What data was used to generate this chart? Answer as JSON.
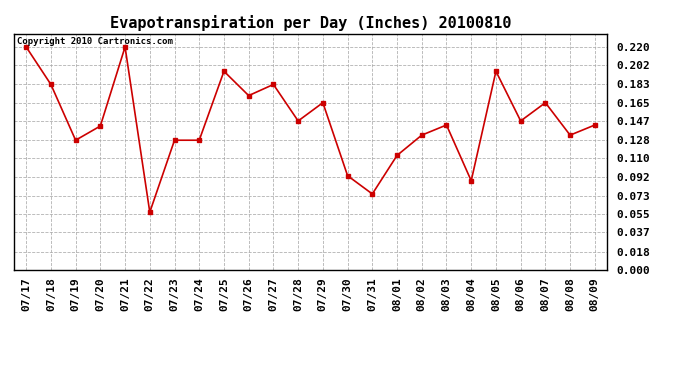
{
  "title": "Evapotranspiration per Day (Inches) 20100810",
  "copyright": "Copyright 2010 Cartronics.com",
  "x_labels": [
    "07/17",
    "07/18",
    "07/19",
    "07/20",
    "07/21",
    "07/22",
    "07/23",
    "07/24",
    "07/25",
    "07/26",
    "07/27",
    "07/28",
    "07/29",
    "07/30",
    "07/31",
    "08/01",
    "08/02",
    "08/03",
    "08/04",
    "08/05",
    "08/06",
    "08/07",
    "08/08",
    "08/09"
  ],
  "y_values": [
    0.22,
    0.183,
    0.128,
    0.142,
    0.22,
    0.057,
    0.128,
    0.128,
    0.196,
    0.172,
    0.183,
    0.147,
    0.165,
    0.093,
    0.075,
    0.113,
    0.133,
    0.143,
    0.088,
    0.196,
    0.147,
    0.165,
    0.133,
    0.143
  ],
  "y_ticks": [
    0.0,
    0.018,
    0.037,
    0.055,
    0.073,
    0.092,
    0.11,
    0.128,
    0.147,
    0.165,
    0.183,
    0.202,
    0.22
  ],
  "line_color": "#cc0000",
  "marker": "s",
  "marker_size": 3,
  "background_color": "#ffffff",
  "plot_bg_color": "#ffffff",
  "grid_color": "#aaaaaa",
  "title_fontsize": 11,
  "tick_fontsize": 8,
  "copyright_fontsize": 6.5
}
